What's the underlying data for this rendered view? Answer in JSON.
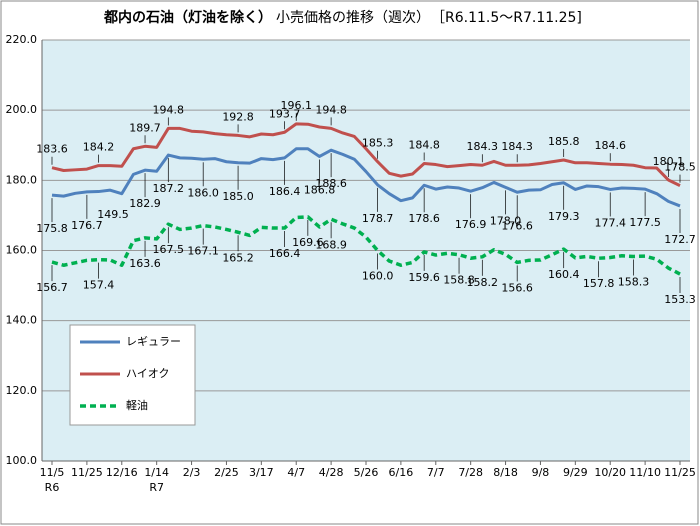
{
  "chart_data": {
    "type": "line",
    "title": "都内の石油（灯油を除く）",
    "subtitle": "小売価格の推移（週次）",
    "period": "［R6.11.5～R7.11.25]",
    "categories": [
      "11/5",
      null,
      null,
      "11/25",
      null,
      null,
      "12/16",
      null,
      null,
      "1/14",
      null,
      null,
      "2/3",
      null,
      null,
      "2/25",
      null,
      null,
      "3/17",
      null,
      null,
      "4/7",
      null,
      null,
      "4/28",
      null,
      null,
      "5/26",
      null,
      null,
      "6/16",
      null,
      null,
      "7/7",
      null,
      null,
      "7/28",
      null,
      null,
      "8/18",
      null,
      null,
      "9/8",
      null,
      null,
      "9/29",
      null,
      null,
      "10/20",
      null,
      null,
      "11/10",
      null,
      null,
      "11/25"
    ],
    "x_sublabels": [
      "R6",
      null,
      null,
      null,
      null,
      null,
      null,
      null,
      null,
      "R7",
      null,
      null,
      null,
      null,
      null,
      null,
      null,
      null,
      null,
      null,
      null,
      null,
      null,
      null,
      null,
      null,
      null,
      null,
      null,
      null,
      null,
      null,
      null,
      null,
      null,
      null,
      null,
      null,
      null,
      null,
      null,
      null,
      null,
      null,
      null,
      null,
      null,
      null,
      null,
      null,
      null,
      null,
      null,
      null,
      null
    ],
    "series": [
      {
        "name": "レギュラー",
        "color": "#4f81bd",
        "dashed": false,
        "values": [
          175.8,
          175.5,
          176.3,
          176.7,
          176.8,
          177.2,
          176.2,
          181.7,
          182.9,
          182.6,
          187.2,
          186.4,
          186.3,
          186.0,
          186.2,
          185.3,
          185.0,
          184.9,
          186.2,
          185.9,
          186.4,
          189.0,
          189.0,
          186.8,
          188.6,
          187.4,
          186.0,
          182.5,
          178.7,
          176.2,
          174.2,
          175.0,
          178.6,
          177.5,
          178.1,
          177.8,
          176.9,
          177.9,
          179.4,
          178.0,
          176.6,
          177.2,
          177.3,
          178.8,
          179.3,
          177.4,
          178.4,
          178.2,
          177.4,
          177.8,
          177.7,
          177.5,
          176.2,
          174.0,
          172.7
        ],
        "value_labels": [
          "175.8",
          null,
          null,
          "176.7",
          null,
          null,
          null,
          null,
          "182.9",
          null,
          "187.2",
          null,
          null,
          "186.0",
          null,
          null,
          "185.0",
          null,
          null,
          null,
          "186.4",
          null,
          null,
          "186.8",
          "188.6",
          null,
          null,
          null,
          "178.7",
          null,
          null,
          null,
          "178.6",
          null,
          null,
          null,
          "176.9",
          null,
          null,
          "178.0",
          "176.6",
          null,
          null,
          null,
          "179.3",
          null,
          null,
          null,
          "177.4",
          null,
          null,
          "177.5",
          null,
          null,
          "172.7"
        ]
      },
      {
        "name": "ハイオク",
        "color": "#c0504d",
        "dashed": false,
        "values": [
          183.6,
          182.8,
          183.0,
          183.2,
          184.2,
          184.2,
          184.0,
          189.0,
          189.7,
          189.4,
          194.8,
          194.8,
          194.0,
          193.8,
          193.3,
          193.0,
          192.8,
          192.4,
          193.2,
          193.0,
          193.7,
          196.1,
          196.0,
          195.2,
          194.8,
          193.5,
          192.5,
          189.0,
          185.3,
          182.0,
          181.2,
          181.8,
          184.8,
          184.5,
          183.9,
          184.2,
          184.5,
          184.3,
          185.4,
          184.3,
          184.3,
          184.4,
          184.8,
          185.3,
          185.8,
          185.0,
          185.0,
          184.8,
          184.6,
          184.5,
          184.3,
          183.6,
          183.5,
          180.1,
          178.5
        ],
        "value_labels": [
          "183.6",
          null,
          null,
          null,
          "184.2",
          null,
          null,
          null,
          "189.7",
          null,
          "194.8",
          null,
          null,
          null,
          null,
          null,
          "192.8",
          null,
          null,
          null,
          "193.7",
          "196.1",
          null,
          null,
          "194.8",
          null,
          null,
          null,
          "185.3",
          null,
          null,
          null,
          "184.8",
          null,
          null,
          null,
          null,
          "184.3",
          null,
          null,
          "184.3",
          null,
          null,
          null,
          "185.8",
          null,
          null,
          null,
          "184.6",
          null,
          null,
          null,
          null,
          "180.1",
          "178.5"
        ]
      },
      {
        "name": "軽油",
        "color": "#00b050",
        "dashed": true,
        "values": [
          156.7,
          155.8,
          156.5,
          157.2,
          157.4,
          157.3,
          155.8,
          162.8,
          163.6,
          163.3,
          167.5,
          166.0,
          166.4,
          167.1,
          166.7,
          166.0,
          165.2,
          164.3,
          166.6,
          166.4,
          166.4,
          169.4,
          169.6,
          166.7,
          168.9,
          167.6,
          166.4,
          163.8,
          160.0,
          157.0,
          155.8,
          156.6,
          159.6,
          158.7,
          159.2,
          158.8,
          157.8,
          158.2,
          160.2,
          158.9,
          156.6,
          157.2,
          157.3,
          158.8,
          160.4,
          157.9,
          158.3,
          157.8,
          158.0,
          158.5,
          158.3,
          158.4,
          157.5,
          155.0,
          153.3
        ],
        "value_labels": [
          "156.7",
          null,
          null,
          null,
          "157.4",
          null,
          null,
          null,
          "163.6",
          null,
          "167.5",
          null,
          null,
          "167.1",
          null,
          null,
          "165.2",
          null,
          null,
          null,
          "166.4",
          null,
          "169.6",
          null,
          "168.9",
          null,
          null,
          null,
          "160.0",
          null,
          null,
          null,
          "159.6",
          null,
          null,
          "158.8",
          null,
          "158.2",
          null,
          null,
          "156.6",
          null,
          null,
          null,
          "160.4",
          null,
          null,
          "157.8",
          null,
          null,
          "158.3",
          null,
          null,
          null,
          "153.3"
        ]
      }
    ],
    "annotations": [
      "149.5"
    ],
    "ylim": [
      100,
      220
    ],
    "yticks": [
      {
        "value": 100,
        "label": "100.0"
      },
      {
        "value": 120,
        "label": "120.0"
      },
      {
        "value": 140,
        "label": "140.0"
      },
      {
        "value": 160,
        "label": "160.0"
      },
      {
        "value": 180,
        "label": "180.0"
      },
      {
        "value": 200,
        "label": "200.0"
      },
      {
        "value": 220,
        "label": "220.0"
      }
    ],
    "grid": true,
    "legend": "lower-left"
  }
}
